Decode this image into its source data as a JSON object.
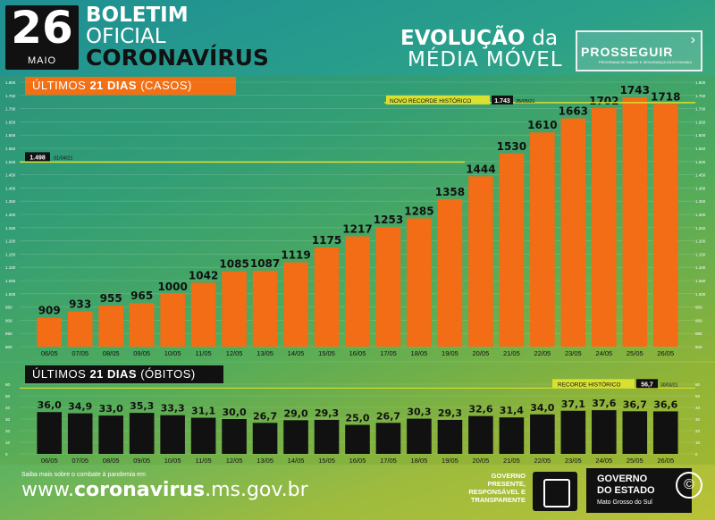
{
  "header": {
    "day": "26",
    "month": "MAIO",
    "title_line1": "BOLETIM",
    "title_line2": "OFICIAL",
    "title_line3": "CORONAVÍRUS",
    "evolucao": "EVOLUÇÃO",
    "da": "da",
    "media_movel": "MÉDIA MÓVEL",
    "prosseguir": "PROSSEGUIR",
    "prosseguir_sub": "PROGRAMA DE SAÚDE E SEGURANÇA DA ECONOMIA"
  },
  "colors": {
    "casos_bar": "#f36c16",
    "obitos_bar": "#111111",
    "record_line": "#d8e030",
    "casos_label": "#f26f14"
  },
  "chart_data": [
    {
      "type": "bar",
      "title": "ÚLTIMOS 21 DIAS (CASOS)",
      "title_normal": "ÚLTIMOS ",
      "title_bold": "21 DIAS",
      "title_tail": " (CASOS)",
      "categories": [
        "06/05",
        "07/05",
        "08/05",
        "09/05",
        "10/05",
        "11/05",
        "12/05",
        "13/05",
        "14/05",
        "15/05",
        "16/05",
        "17/05",
        "18/05",
        "19/05",
        "20/05",
        "21/05",
        "22/05",
        "23/05",
        "24/05",
        "25/05",
        "26/05"
      ],
      "values": [
        909,
        933,
        955,
        965,
        1000,
        1042,
        1085,
        1087,
        1119,
        1175,
        1217,
        1253,
        1285,
        1358,
        1444,
        1530,
        1610,
        1663,
        1702,
        1743,
        1718
      ],
      "ylim": [
        800,
        1800
      ],
      "ticks": [
        "1.800",
        "1.750",
        "1.700",
        "1.650",
        "1.600",
        "1.550",
        "1.500",
        "1.450",
        "1.400",
        "1.350",
        "1.300",
        "1.250",
        "1.200",
        "1.150",
        "1.100",
        "1.050",
        "1.000",
        "950",
        "900",
        "850",
        "800"
      ],
      "grid": true,
      "annotations": [
        {
          "label": "1.498",
          "date": "01/04/21",
          "value": 1498
        },
        {
          "label": "NOVO RECORDE HISTÓRICO",
          "value_label": "1.743",
          "date": "25/05/21",
          "value": 1743
        }
      ]
    },
    {
      "type": "bar",
      "title": "ÚLTIMOS 21 DIAS (ÓBITOS)",
      "title_normal": "ÚLTIMOS ",
      "title_bold": "21 DIAS",
      "title_tail": " (ÓBITOS)",
      "categories": [
        "06/05",
        "07/05",
        "08/05",
        "09/05",
        "10/05",
        "11/05",
        "12/05",
        "13/05",
        "14/05",
        "15/05",
        "16/05",
        "17/05",
        "18/05",
        "19/05",
        "20/05",
        "21/05",
        "22/05",
        "23/05",
        "24/05",
        "25/05",
        "26/05"
      ],
      "labels": [
        "36,0",
        "34,9",
        "33,0",
        "35,3",
        "33,3",
        "31,1",
        "30,0",
        "26,7",
        "29,0",
        "29,3",
        "25,0",
        "26,7",
        "30,3",
        "29,3",
        "32,6",
        "31,4",
        "34,0",
        "37,1",
        "37,6",
        "36,7",
        "36,6"
      ],
      "values": [
        36.0,
        34.9,
        33.0,
        35.3,
        33.3,
        31.1,
        30.0,
        26.7,
        29.0,
        29.3,
        25.0,
        26.7,
        30.3,
        29.3,
        32.6,
        31.4,
        34.0,
        37.1,
        37.6,
        36.7,
        36.6
      ],
      "ylim": [
        0,
        60
      ],
      "ticks": [
        "60",
        "50",
        "40",
        "30",
        "20",
        "10",
        "0"
      ],
      "grid": true,
      "annotations": [
        {
          "label": "RECORDE HISTÓRICO",
          "value_label": "56,7",
          "date": "30/03/21",
          "value": 56.7
        }
      ]
    }
  ],
  "footer": {
    "saiba": "Saiba mais sobre o combate à pandemia em",
    "url_prefix": "www.",
    "url_bold": "coronavirus",
    "url_suffix": ".ms.gov.br",
    "gov_line1": "GOVERNO",
    "gov_line2": "PRESENTE,",
    "gov_line3": "RESPONSÁVEL E",
    "gov_line4": "TRANSPARENTE",
    "estado_line1": "GOVERNO",
    "estado_line2": "DO ESTADO",
    "estado_line3": "Mato Grosso do Sul",
    "copyright": "©"
  }
}
